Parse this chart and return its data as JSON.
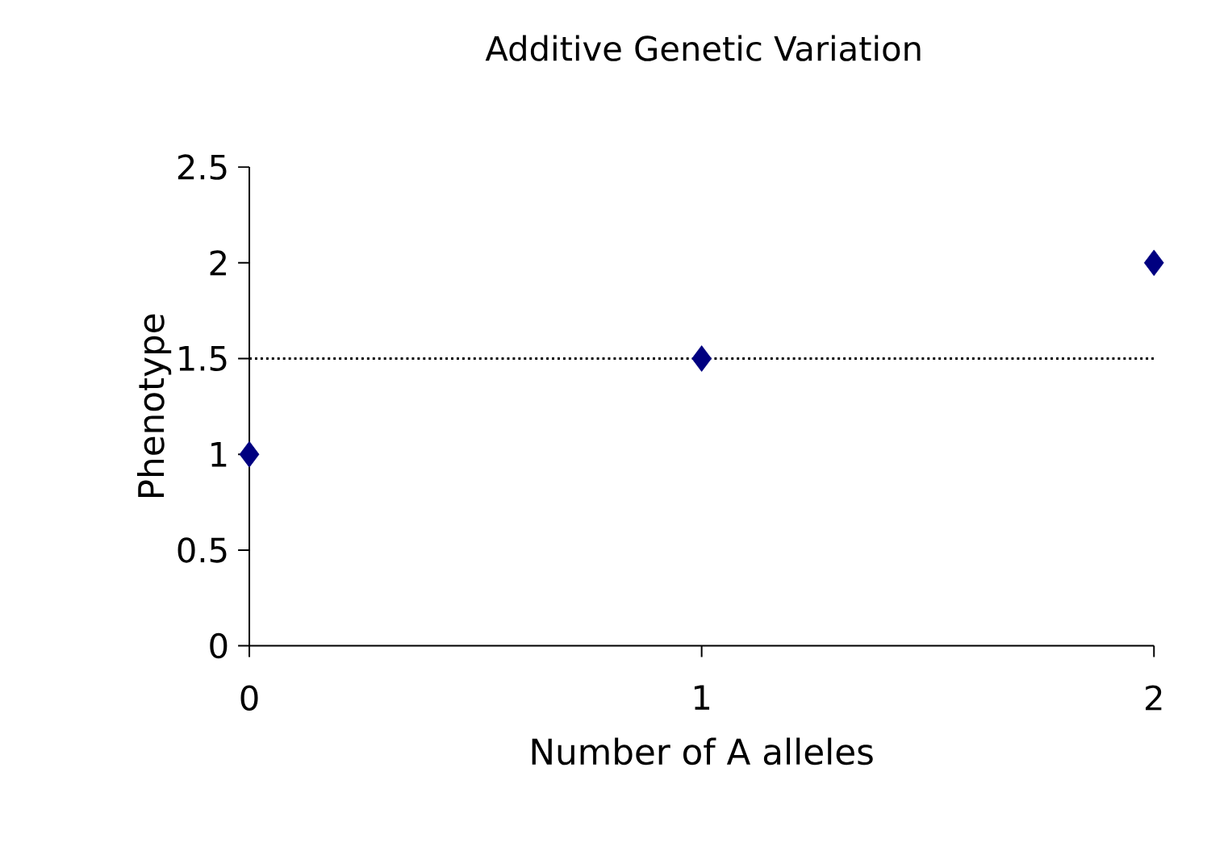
{
  "chart_data": {
    "type": "scatter",
    "title": "Additive Genetic Variation",
    "xlabel": "Number of A alleles",
    "ylabel": "Phenotype",
    "x": [
      0,
      1,
      2
    ],
    "values": [
      1,
      1.5,
      2
    ],
    "color": "#000080",
    "marker": "diamond",
    "xlim": [
      0,
      2
    ],
    "xticks": [
      0,
      1,
      2
    ],
    "ylim": [
      0,
      2.5
    ],
    "yticks": [
      0,
      0.5,
      1,
      1.5,
      2,
      2.5
    ],
    "ref_lines": [
      {
        "axis": "y",
        "value": 1.5,
        "line_style": "dotted",
        "color": "#000000"
      }
    ]
  }
}
